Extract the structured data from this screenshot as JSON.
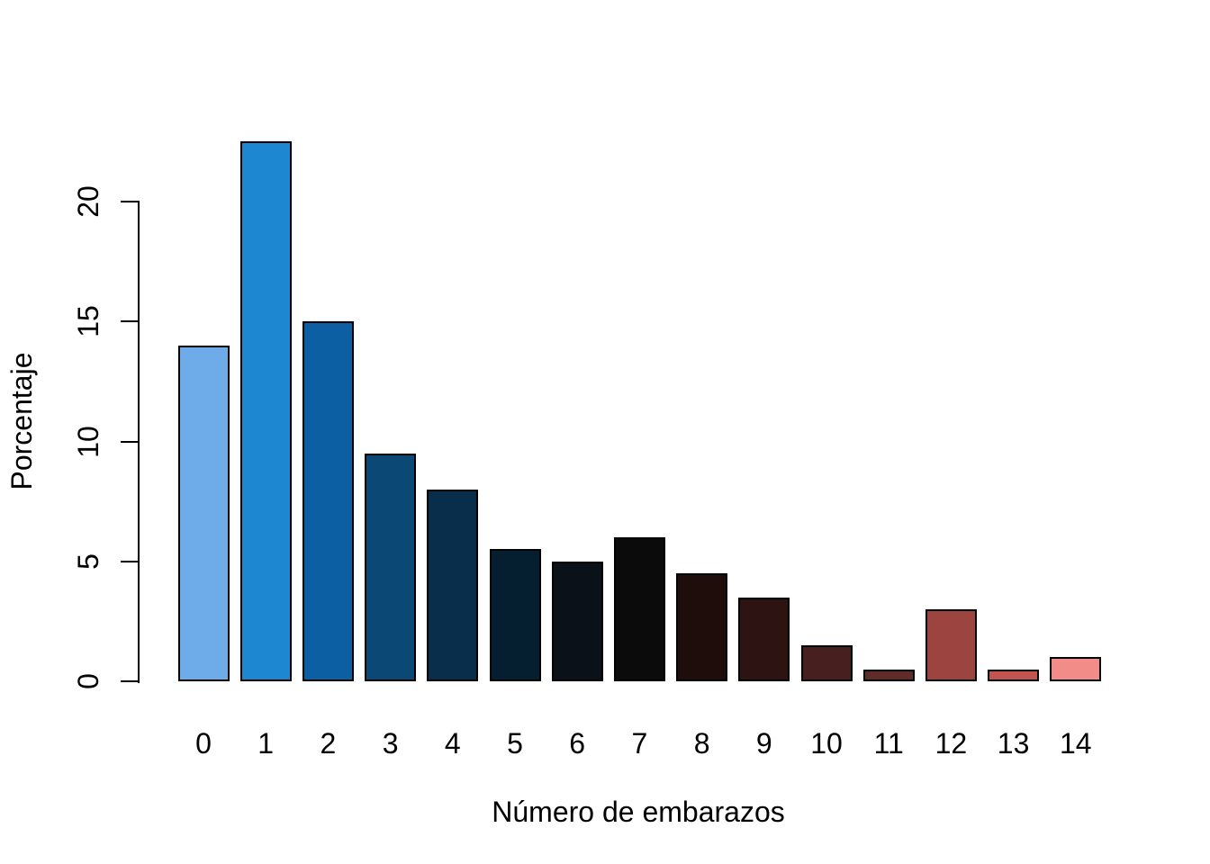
{
  "figure": {
    "background": "#ffffff",
    "text_color": "#000000"
  },
  "chart_data": {
    "type": "bar",
    "title": "",
    "xlabel": "Número de embarazos",
    "ylabel": "Porcentaje",
    "categories": [
      "0",
      "1",
      "2",
      "3",
      "4",
      "5",
      "6",
      "7",
      "8",
      "9",
      "10",
      "11",
      "12",
      "13",
      "14"
    ],
    "values": [
      14,
      22.5,
      15,
      9.5,
      8,
      5.5,
      5,
      6,
      4.5,
      3.5,
      1.5,
      0.5,
      3,
      0.5,
      1
    ],
    "bar_colors": [
      "#6DACE9",
      "#1E87D2",
      "#0D5FA4",
      "#0C4876",
      "#092E4C",
      "#051F30",
      "#0A1119",
      "#0B0B0B",
      "#1F0D0C",
      "#2D1413",
      "#471F1E",
      "#5F2C29",
      "#9B4440",
      "#C35450",
      "#F18C88"
    ],
    "bar_border_color": "#000000",
    "yticks": [
      0,
      5,
      10,
      15,
      20
    ],
    "ytick_labels": [
      "0",
      "5",
      "10",
      "15",
      "20"
    ],
    "ylim": [
      0,
      22.6
    ],
    "grid": false,
    "legend": null
  }
}
